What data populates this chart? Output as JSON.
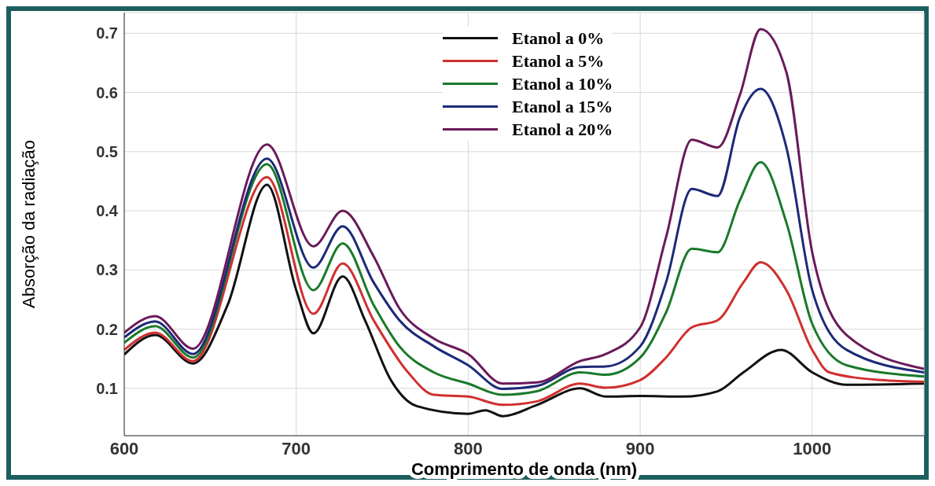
{
  "chart_data": {
    "type": "line",
    "xlabel": "Comprimento de onda (nm)",
    "ylabel": "Absorção da radiação",
    "xlim": [
      600,
      1065
    ],
    "xticks": [
      600,
      700,
      800,
      900,
      1000
    ],
    "ylim": [
      0.02,
      0.735
    ],
    "yticks": [
      0.1,
      0.2,
      0.3,
      0.4,
      0.5,
      0.6,
      0.7
    ],
    "grid": true,
    "legend": "top",
    "series": [
      {
        "name": "Etanol a 0%",
        "color": "#111111",
        "x": [
          600,
          618,
          640,
          660,
          683,
          700,
          710,
          727,
          740,
          755,
          770,
          800,
          810,
          820,
          840,
          865,
          880,
          900,
          925,
          945,
          960,
          982,
          1000,
          1020,
          1065
        ],
        "values": [
          0.157,
          0.19,
          0.142,
          0.24,
          0.444,
          0.266,
          0.193,
          0.289,
          0.215,
          0.114,
          0.07,
          0.057,
          0.063,
          0.053,
          0.072,
          0.1,
          0.086,
          0.087,
          0.086,
          0.095,
          0.127,
          0.165,
          0.127,
          0.106,
          0.108
        ]
      },
      {
        "name": "Etanol a 5%",
        "color": "#d03030",
        "x": [
          600,
          618,
          640,
          683,
          710,
          727,
          745,
          765,
          780,
          800,
          820,
          840,
          865,
          880,
          900,
          915,
          930,
          945,
          960,
          970,
          985,
          1000,
          1010,
          1040,
          1065
        ],
        "values": [
          0.165,
          0.194,
          0.146,
          0.457,
          0.226,
          0.311,
          0.215,
          0.127,
          0.089,
          0.086,
          0.072,
          0.078,
          0.108,
          0.101,
          0.114,
          0.152,
          0.203,
          0.215,
          0.279,
          0.313,
          0.266,
          0.165,
          0.127,
          0.114,
          0.111
        ]
      },
      {
        "name": "Etanol a 10%",
        "color": "#1a7a2a",
        "x": [
          600,
          618,
          640,
          683,
          710,
          727,
          745,
          760,
          780,
          800,
          820,
          840,
          865,
          880,
          900,
          915,
          930,
          945,
          958,
          970,
          985,
          1000,
          1020,
          1065
        ],
        "values": [
          0.177,
          0.205,
          0.152,
          0.479,
          0.266,
          0.345,
          0.241,
          0.171,
          0.127,
          0.108,
          0.089,
          0.095,
          0.127,
          0.123,
          0.152,
          0.228,
          0.336,
          0.33,
          0.418,
          0.482,
          0.38,
          0.209,
          0.139,
          0.12
        ]
      },
      {
        "name": "Etanol a 15%",
        "color": "#1c2a78",
        "x": [
          600,
          618,
          640,
          683,
          710,
          727,
          745,
          760,
          780,
          800,
          820,
          840,
          865,
          880,
          900,
          915,
          930,
          945,
          958,
          970,
          985,
          1000,
          1020,
          1065
        ],
        "values": [
          0.186,
          0.213,
          0.158,
          0.488,
          0.304,
          0.374,
          0.279,
          0.215,
          0.171,
          0.139,
          0.099,
          0.104,
          0.136,
          0.137,
          0.171,
          0.279,
          0.437,
          0.425,
          0.558,
          0.606,
          0.507,
          0.266,
          0.165,
          0.127
        ]
      },
      {
        "name": "Etanol a 20%",
        "color": "#6a1a5a",
        "x": [
          600,
          618,
          640,
          683,
          710,
          727,
          745,
          760,
          780,
          800,
          820,
          840,
          865,
          880,
          900,
          915,
          930,
          945,
          958,
          970,
          985,
          1000,
          1020,
          1065
        ],
        "values": [
          0.194,
          0.222,
          0.167,
          0.512,
          0.34,
          0.4,
          0.323,
          0.235,
          0.184,
          0.158,
          0.108,
          0.11,
          0.146,
          0.158,
          0.203,
          0.355,
          0.52,
          0.507,
          0.596,
          0.707,
          0.634,
          0.33,
          0.19,
          0.133
        ]
      }
    ]
  }
}
